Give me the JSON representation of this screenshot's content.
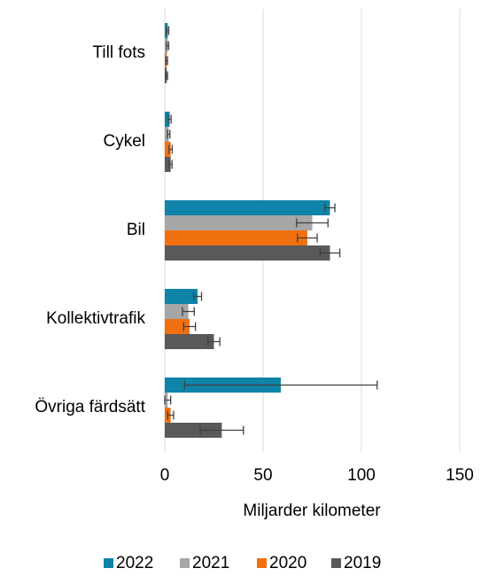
{
  "chart_data": {
    "type": "bar",
    "orientation": "horizontal",
    "xlabel": "Miljarder kilometer",
    "categories": [
      "Till fots",
      "Cykel",
      "Bil",
      "Kollektivtrafik",
      "Övriga färdsätt"
    ],
    "series": [
      {
        "name": "2022",
        "color": "#0f84a8",
        "values": [
          1.5,
          2.5,
          84,
          16.7,
          59
        ],
        "errors": [
          0.5,
          0.7,
          2.5,
          2,
          49
        ]
      },
      {
        "name": "2021",
        "color": "#a6a6a6",
        "values": [
          1.5,
          2,
          75,
          12,
          1.5
        ],
        "errors": [
          0.5,
          0.6,
          8,
          3,
          1.5
        ]
      },
      {
        "name": "2020",
        "color": "#f07010",
        "values": [
          1,
          3,
          72.5,
          12.6,
          3
        ],
        "errors": [
          0.4,
          0.8,
          5,
          3,
          1.5
        ]
      },
      {
        "name": "2019",
        "color": "#595959",
        "values": [
          1,
          3,
          84,
          25,
          29
        ],
        "errors": [
          0.4,
          0.7,
          5,
          3,
          11
        ]
      }
    ],
    "xlim": [
      0,
      150
    ],
    "xticks": [
      0,
      50,
      100,
      150
    ],
    "grid": true,
    "legend": "bottom"
  }
}
